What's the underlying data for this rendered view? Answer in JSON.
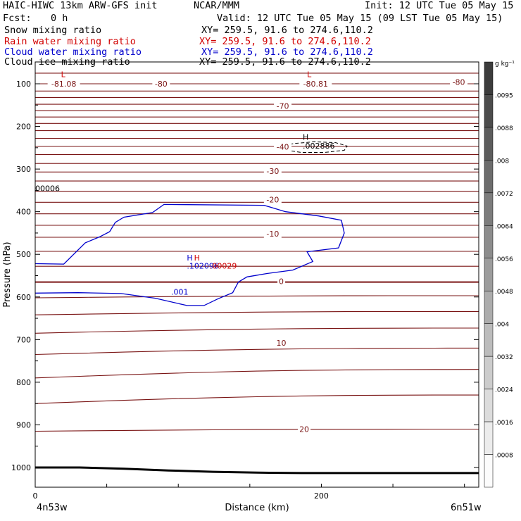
{
  "header": {
    "model": "HAIC-HIWC 13km ARW-GFS init",
    "org": "NCAR/MMM",
    "init": "Init: 12 UTC Tue 05 May 15",
    "fcst_label": "Fcst:",
    "fcst_value": "0 h",
    "valid": "Valid: 12 UTC Tue 05 May 15 (09 LST Tue 05 May 15)",
    "fields": [
      {
        "name": "Snow mixing ratio",
        "xy": "XY= 259.5, 91.6 to 274.6,110.2",
        "color": "#000000"
      },
      {
        "name": "Rain water mixing ratio",
        "xy": "XY= 259.5, 91.6 to 274.6,110.2",
        "color": "#d10000"
      },
      {
        "name": "Cloud water mixing ratio",
        "xy": "XY= 259.5, 91.6 to 274.6,110.2",
        "color": "#0000cc"
      },
      {
        "name": "Cloud ice mixing ratio",
        "xy": "XY= 259.5, 91.6 to 274.6,110.2",
        "color": "#000000"
      }
    ]
  },
  "chart_data": {
    "type": "contour",
    "xlabel": "Distance (km)",
    "ylabel": "Pressure (hPa)",
    "xlim": [
      0,
      310
    ],
    "ylim": [
      1050,
      70
    ],
    "x_ticks": [
      0,
      200
    ],
    "y_ticks": [
      100,
      200,
      300,
      400,
      500,
      600,
      700,
      800,
      900,
      1000
    ],
    "x_end_labels": {
      "left": "4n53w",
      "right": "6n51w"
    },
    "colorbar": {
      "unit": "g kg⁻¹",
      "labels": [
        ".0095",
        ".0088",
        ".008",
        ".0072",
        ".0064",
        ".0056",
        ".0048",
        ".004",
        ".0032",
        ".0024",
        ".0016",
        ".0008"
      ],
      "levels": [
        0.0008,
        0.0016,
        0.0024,
        0.0032,
        0.004,
        0.0048,
        0.0056,
        0.0064,
        0.0072,
        0.008,
        0.0088,
        0.0095
      ]
    },
    "temperature_labels": [
      {
        "text": "-81.08",
        "x": 20,
        "p": 100
      },
      {
        "text": "-80",
        "x": 88,
        "p": 100
      },
      {
        "text": "-80.81",
        "x": 196,
        "p": 100
      },
      {
        "text": "-80",
        "x": 296,
        "p": 96
      },
      {
        "text": "-70",
        "x": 173,
        "p": 152
      },
      {
        "text": "-40",
        "x": 173,
        "p": 248
      },
      {
        "text": "-30",
        "x": 166,
        "p": 305
      },
      {
        "text": "-20",
        "x": 166,
        "p": 372
      },
      {
        "text": "-10",
        "x": 166,
        "p": 452
      },
      {
        "text": "0",
        "x": 172,
        "p": 563
      },
      {
        "text": "10",
        "x": 172,
        "p": 708
      },
      {
        "text": "20",
        "x": 188,
        "p": 910
      }
    ],
    "extrema_labels": [
      {
        "text": "L",
        "x": 18,
        "p": 78,
        "color": "#d10000"
      },
      {
        "text": "L",
        "x": 190,
        "p": 78,
        "color": "#d10000"
      },
      {
        "text": "H",
        "x": 187,
        "p": 225,
        "color": "#000000"
      },
      {
        "text": ".002886",
        "x": 187,
        "p": 245,
        "color": "#000000"
      },
      {
        "text": "H",
        "x": 106,
        "p": 508,
        "color": "#0000cc"
      },
      {
        "text": "H",
        "x": 111,
        "p": 508,
        "color": "#d10000"
      },
      {
        "text": ".102096",
        "x": 106,
        "p": 527,
        "color": "#0000cc"
      },
      {
        "text": ".00029",
        "x": 122,
        "p": 527,
        "color": "#d10000"
      },
      {
        "text": ".001",
        "x": 95,
        "p": 588,
        "color": "#0000cc"
      },
      {
        "text": "00006",
        "x": 0,
        "p": 345,
        "color": "#000000"
      }
    ],
    "isotherm_pressures": [
      75,
      100,
      117,
      132,
      148,
      163,
      178,
      193,
      210,
      228,
      247,
      266,
      287,
      307,
      328,
      352,
      378,
      405,
      432,
      460,
      493,
      528,
      565,
      602,
      642,
      685,
      735,
      790,
      850,
      915
    ],
    "isotherm_slopes": [
      0,
      0,
      0,
      0,
      0,
      0,
      0,
      0,
      0,
      0,
      0,
      0,
      0,
      0,
      0,
      0,
      0,
      0,
      0,
      0,
      0,
      0,
      0,
      -5,
      -8,
      -12,
      -15,
      -20,
      -20,
      -5
    ],
    "surface_pressure": [
      1000,
      1000,
      1003,
      1007,
      1010,
      1012,
      1013,
      1013,
      1013,
      1013,
      1013
    ],
    "cloud_water_contour": [
      [
        0,
        522
      ],
      [
        20,
        523
      ],
      [
        35,
        473
      ],
      [
        45,
        459
      ],
      [
        52,
        447
      ],
      [
        56,
        425
      ],
      [
        62,
        413
      ],
      [
        82,
        402
      ],
      [
        90,
        383
      ],
      [
        160,
        385
      ],
      [
        175,
        400
      ],
      [
        198,
        410
      ],
      [
        214,
        420
      ],
      [
        216,
        450
      ],
      [
        212,
        485
      ],
      [
        190,
        494
      ],
      [
        194,
        517
      ],
      [
        180,
        537
      ],
      [
        162,
        545
      ],
      [
        148,
        553
      ],
      [
        142,
        565
      ],
      [
        138,
        590
      ],
      [
        128,
        604
      ],
      [
        118,
        620
      ],
      [
        106,
        620
      ],
      [
        84,
        603
      ],
      [
        60,
        592
      ],
      [
        30,
        590
      ],
      [
        0,
        591
      ]
    ],
    "cloud_ice_contour": [
      [
        174,
        245
      ],
      [
        181,
        240
      ],
      [
        195,
        236
      ],
      [
        210,
        238
      ],
      [
        218,
        246
      ],
      [
        216,
        256
      ],
      [
        202,
        261
      ],
      [
        186,
        261
      ],
      [
        176,
        256
      ],
      [
        174,
        245
      ]
    ]
  }
}
